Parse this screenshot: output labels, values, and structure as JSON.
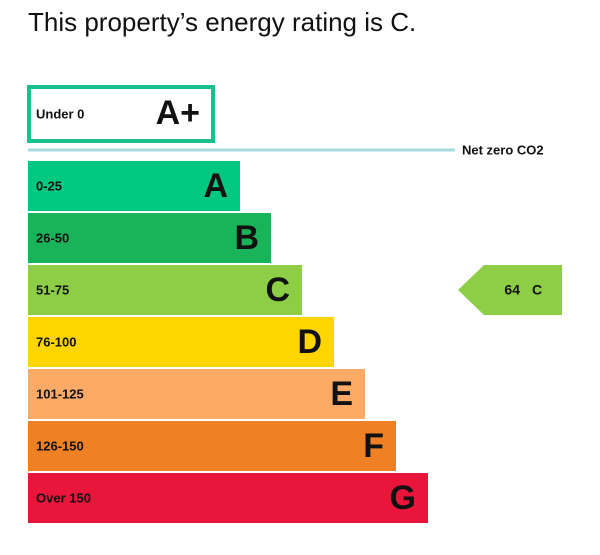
{
  "title": "This property’s energy rating is C.",
  "top_band": {
    "range": "Under 0",
    "letter": "A+",
    "color": "#19c08e"
  },
  "net_zero": {
    "label": "Net zero CO2",
    "color": "#a6dbe0"
  },
  "bands": [
    {
      "range": "0-25",
      "letter": "A",
      "color": "#00c781"
    },
    {
      "range": "26-50",
      "letter": "B",
      "color": "#19b459"
    },
    {
      "range": "51-75",
      "letter": "C",
      "color": "#8dce46"
    },
    {
      "range": "76-100",
      "letter": "D",
      "color": "#ffd500"
    },
    {
      "range": "101-125",
      "letter": "E",
      "color": "#fcaa65"
    },
    {
      "range": "126-150",
      "letter": "F",
      "color": "#ef8023"
    },
    {
      "range": "Over 150",
      "letter": "G",
      "color": "#e9153b"
    }
  ],
  "current": {
    "score": 64,
    "letter": "C"
  }
}
